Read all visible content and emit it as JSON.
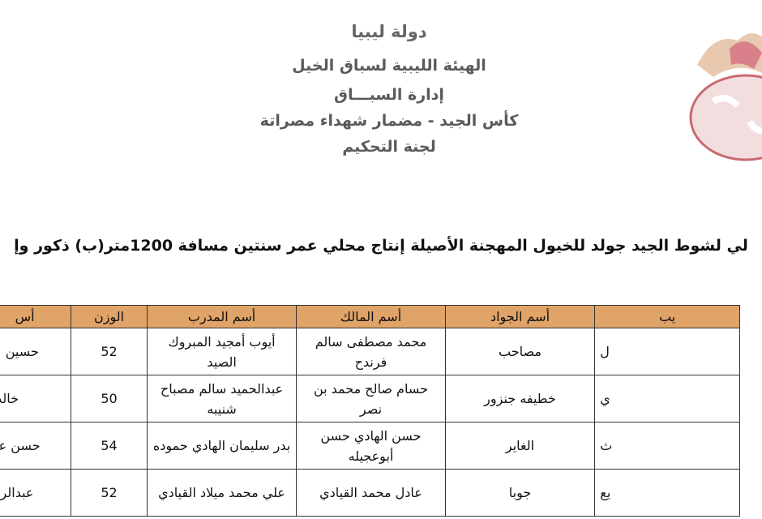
{
  "header": {
    "lines": [
      "دولة ليبيا",
      "الهيئة الليبية لسباق الخيل",
      "إدارة السبـــاق",
      "كأس الجيد - مضمار شهداء مصراتة",
      "لجنة التحكيم"
    ]
  },
  "subtitle": "لي لشوط الجيد جولد للخيول المهجنة الأصيلة إنتاج محلي عمر سنتين مسافة 1200متر(ب) ذكور وإ",
  "table": {
    "columns": [
      "يب",
      "أسم الجواد",
      "أسم المالك",
      "أسم المدرب",
      "الوزن",
      "أس"
    ],
    "rows": [
      [
        "ل",
        "مصاحب",
        "محمد مصطفى سالم فرندح",
        "أيوب أمجيد المبروك الصيد",
        52,
        "حسين عل"
      ],
      [
        "ي",
        "خطيفه جنزور",
        "حسام صالح محمد بن نصر",
        "عبدالحميد سالم مصباح شنيبه",
        50,
        "خالد م"
      ],
      [
        "ث",
        "الغاير",
        "حسن الهادي حسن أبوعجيله",
        "بدر سليمان الهادي حموده",
        54,
        "حسن علي"
      ],
      [
        "يع",
        "جوبا",
        "عادل محمد القيادي",
        "علي محمد ميلاد القيادي",
        52,
        "عبدالرحم"
      ]
    ]
  }
}
